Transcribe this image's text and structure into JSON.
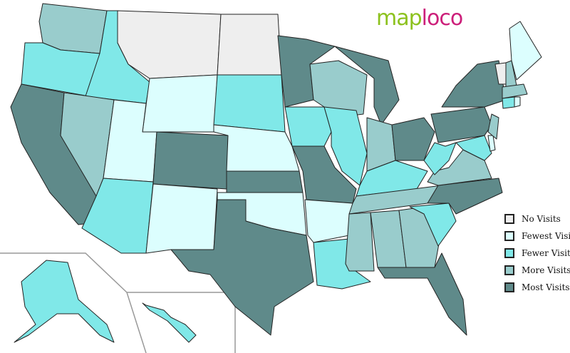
{
  "logo": {
    "part1": "map",
    "part2": "loco"
  },
  "legend": [
    {
      "key": "none",
      "label": "No Visits",
      "color": "#eeeeee"
    },
    {
      "key": "fewest",
      "label": "Fewest Visits",
      "color": "#dcfefe"
    },
    {
      "key": "fewer",
      "label": "Fewer Visits",
      "color": "#80e8e8"
    },
    {
      "key": "more",
      "label": "More Visits",
      "color": "#99cccc"
    },
    {
      "key": "most",
      "label": "Most Visits",
      "color": "#5f8a8a"
    }
  ],
  "states": {
    "WA": "more",
    "OR": "fewer",
    "CA": "most",
    "ID": "fewer",
    "NV": "more",
    "MT": "none",
    "WY": "fewest",
    "UT": "fewest",
    "AZ": "fewer",
    "CO": "most",
    "NM": "fewest",
    "ND": "none",
    "SD": "fewer",
    "NE": "fewest",
    "KS": "most",
    "OK": "fewest",
    "TX": "most",
    "MN": "most",
    "IA": "fewer",
    "MO": "most",
    "AR": "fewest",
    "LA": "fewer",
    "WI": "more",
    "IL": "fewer",
    "MI": "most",
    "IN": "more",
    "OH": "most",
    "KY": "fewer",
    "TN": "more",
    "MS": "more",
    "AL": "more",
    "GA": "more",
    "FL": "most",
    "SC": "fewer",
    "NC": "most",
    "VA": "more",
    "WV": "fewer",
    "PA": "most",
    "NY": "most",
    "MD": "fewer",
    "DE": "fewest",
    "NJ": "more",
    "VT": "none",
    "NH": "more",
    "ME": "fewest",
    "MA": "more",
    "CT": "fewer",
    "RI": "fewest",
    "AK": "fewer",
    "HI": "fewer"
  }
}
